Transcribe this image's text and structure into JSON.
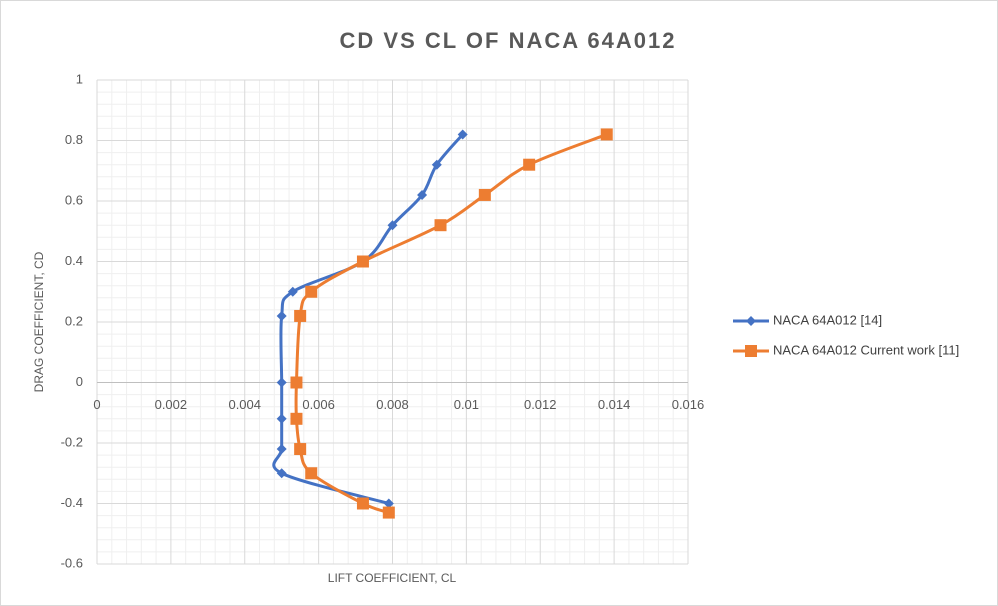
{
  "chart_data": {
    "type": "scatter",
    "title": "CD VS CL OF NACA 64A012",
    "xlabel": "LIFT COEFFICIENT, CL",
    "ylabel": "DRAG COEFFICIENT, CD",
    "xlim": [
      0,
      0.016
    ],
    "xticks": [
      0,
      0.002,
      0.004,
      0.006,
      0.008,
      0.01,
      0.012,
      0.014,
      0.016
    ],
    "ylim": [
      -0.6,
      1
    ],
    "yticks": [
      -0.6,
      -0.4,
      -0.2,
      0,
      0.2,
      0.4,
      0.6,
      0.8,
      1
    ],
    "grid": true,
    "legend": "right",
    "series": [
      {
        "name": "NACA 64A012 [14]",
        "color": "#4472c4",
        "marker": "diamond",
        "x": [
          0.0099,
          0.0092,
          0.0088,
          0.008,
          0.0072,
          0.0053,
          0.005,
          0.005,
          0.005,
          0.005,
          0.005,
          0.0079
        ],
        "values": [
          0.82,
          0.72,
          0.62,
          0.52,
          0.4,
          0.3,
          0.22,
          0,
          -0.12,
          -0.22,
          -0.3,
          -0.4
        ]
      },
      {
        "name": "NACA 64A012 Current work [11]",
        "color": "#ed7d31",
        "marker": "square",
        "x": [
          0.0138,
          0.0117,
          0.0105,
          0.0093,
          0.0072,
          0.0058,
          0.0055,
          0.0054,
          0.0054,
          0.0055,
          0.0058,
          0.0072,
          0.0079
        ],
        "values": [
          0.82,
          0.72,
          0.62,
          0.52,
          0.4,
          0.3,
          0.22,
          0,
          -0.12,
          -0.22,
          -0.3,
          -0.4,
          -0.43
        ]
      }
    ]
  }
}
